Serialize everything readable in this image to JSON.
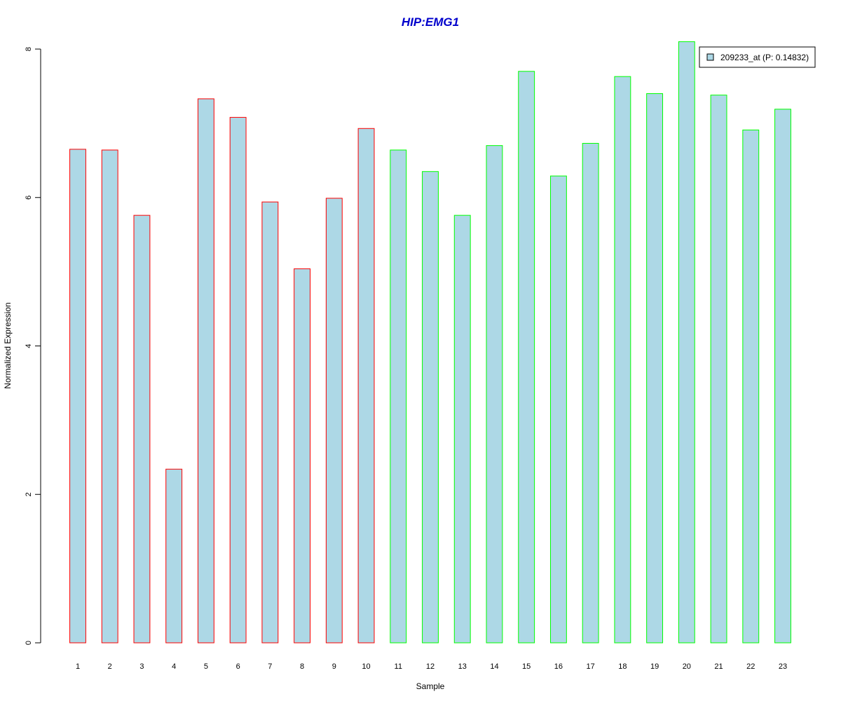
{
  "chart_data": {
    "type": "bar",
    "title": "HIP:EMG1",
    "xlabel": "Sample",
    "ylabel": "Normalized Expression",
    "categories": [
      "1",
      "2",
      "3",
      "4",
      "5",
      "6",
      "7",
      "8",
      "9",
      "10",
      "11",
      "12",
      "13",
      "14",
      "15",
      "16",
      "17",
      "18",
      "19",
      "20",
      "21",
      "22",
      "23"
    ],
    "series": [
      {
        "name": "209233_at (P: 0.14832)",
        "values": [
          6.65,
          6.64,
          5.76,
          2.34,
          7.33,
          7.08,
          5.94,
          5.04,
          5.99,
          6.93,
          6.64,
          6.35,
          5.76,
          6.7,
          7.7,
          6.29,
          6.73,
          7.63,
          7.4,
          8.1,
          7.38,
          6.91,
          7.19
        ]
      }
    ],
    "groups": [
      {
        "samples": [
          1,
          2,
          3,
          4,
          5,
          6,
          7,
          8,
          9,
          10
        ],
        "border_color": "#ff0000"
      },
      {
        "samples": [
          11,
          12,
          13,
          14,
          15,
          16,
          17,
          18,
          19,
          20,
          21,
          22,
          23
        ],
        "border_color": "#00ff00"
      }
    ],
    "ylim": [
      0,
      8
    ],
    "yticks": [
      0,
      2,
      4,
      6,
      8
    ],
    "bar_fill": "#add8e6",
    "title_color": "#0000cc",
    "legend": {
      "label": "209233_at (P: 0.14832)",
      "position": "top-right"
    },
    "grid": false
  }
}
